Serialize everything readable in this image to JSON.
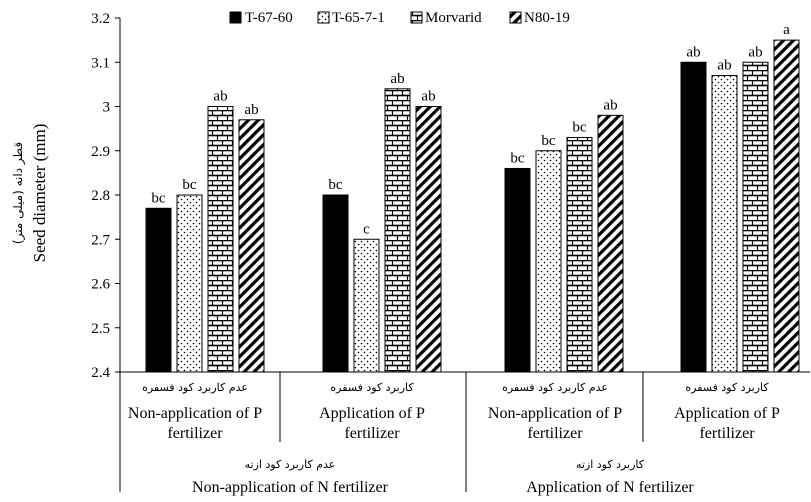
{
  "chart_data": {
    "type": "bar",
    "ylabel": "Seed diameter (mm)",
    "ylabel_fa": "قطر دانه (میلی متر)",
    "ylim": [
      2.4,
      3.2
    ],
    "yticks": [
      "2.4",
      "2.5",
      "2.6",
      "2.7",
      "2.8",
      "2.9",
      "3",
      "3.1",
      "3.2"
    ],
    "grid": false,
    "legend_position": "top",
    "legend": [
      {
        "label": "T-67-60",
        "pattern": "solid"
      },
      {
        "label": "T-65-7-1",
        "pattern": "dots"
      },
      {
        "label": "Morvarid",
        "pattern": "bricks"
      },
      {
        "label": "N80-19",
        "pattern": "diagonal"
      }
    ],
    "p_levels": [
      {
        "fa": "عدم کاربرد کود فسفره",
        "en_line1": "Non-application of P",
        "en_line2": "fertilizer"
      },
      {
        "fa": "کاربرد کود فسفره",
        "en_line1": "Application of P",
        "en_line2": "fertilizer"
      },
      {
        "fa": "عدم کاربرد کود فسفره",
        "en_line1": "Non-application of P",
        "en_line2": "fertilizer"
      },
      {
        "fa": "کاربرد کود فسفره",
        "en_line1": "Application of P",
        "en_line2": "fertilizer"
      }
    ],
    "n_levels": [
      {
        "fa": "عدم کاربرد کود ازته",
        "en": "Non-application of N fertilizer"
      },
      {
        "fa": "کاربرد کود ازته",
        "en": "Application of N fertilizer"
      }
    ],
    "series": [
      {
        "name": "T-67-60",
        "values": [
          2.77,
          2.8,
          2.86,
          3.1
        ],
        "letters": [
          "bc",
          "bc",
          "bc",
          "ab"
        ]
      },
      {
        "name": "T-65-7-1",
        "values": [
          2.8,
          2.7,
          2.9,
          3.07
        ],
        "letters": [
          "bc",
          "c",
          "bc",
          "ab"
        ]
      },
      {
        "name": "Morvarid",
        "values": [
          3.0,
          3.04,
          2.93,
          3.1
        ],
        "letters": [
          "ab",
          "ab",
          "bc",
          "ab"
        ]
      },
      {
        "name": "N80-19",
        "values": [
          2.97,
          3.0,
          2.98,
          3.15
        ],
        "letters": [
          "ab",
          "ab",
          "ab",
          "a"
        ]
      }
    ]
  }
}
